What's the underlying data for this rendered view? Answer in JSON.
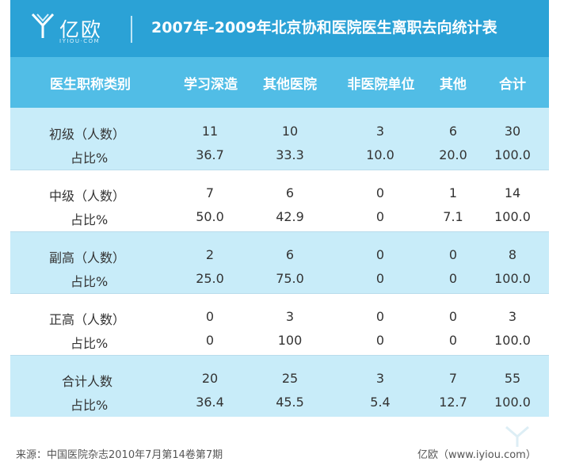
{
  "header": {
    "logo_text": "亿欧",
    "logo_sub": "IYIOU·COM",
    "title": "2007年-2009年北京协和医院医生离职去向统计表"
  },
  "chart_data": {
    "type": "table",
    "title": "2007年-2009年北京协和医院医生离职去向统计表",
    "columns": [
      "医生职称类别",
      "学习深造",
      "其他医院",
      "非医院单位",
      "其他",
      "合计"
    ],
    "rows": [
      {
        "group": "初级（人数）",
        "counts": [
          "11",
          "10",
          "3",
          "6",
          "30"
        ],
        "pct_label": "占比%",
        "pcts": [
          "36.7",
          "33.3",
          "10.0",
          "20.0",
          "100.0"
        ]
      },
      {
        "group": "中级（人数）",
        "counts": [
          "7",
          "6",
          "0",
          "1",
          "14"
        ],
        "pct_label": "占比%",
        "pcts": [
          "50.0",
          "42.9",
          "0",
          "7.1",
          "100.0"
        ]
      },
      {
        "group": "副高（人数）",
        "counts": [
          "2",
          "6",
          "0",
          "0",
          "8"
        ],
        "pct_label": "占比%",
        "pcts": [
          "25.0",
          "75.0",
          "0",
          "0",
          "100.0"
        ]
      },
      {
        "group": "正高（人数）",
        "counts": [
          "0",
          "3",
          "0",
          "0",
          "3"
        ],
        "pct_label": "占比%",
        "pcts": [
          "0",
          "100",
          "0",
          "0",
          "100.0"
        ]
      },
      {
        "group": "合计人数",
        "counts": [
          "20",
          "25",
          "3",
          "7",
          "55"
        ],
        "pct_label": "占比%",
        "pcts": [
          "36.4",
          "45.5",
          "5.4",
          "12.7",
          "100.0"
        ]
      }
    ]
  },
  "colors": {
    "header": "#2ba2d6",
    "column_header": "#51bde6",
    "band_shade": "#c8ecf9"
  },
  "footer": {
    "source": "来源：中国医院杂志2010年7月第14卷第7期",
    "brand": "亿欧（www.iyiou.com）"
  }
}
